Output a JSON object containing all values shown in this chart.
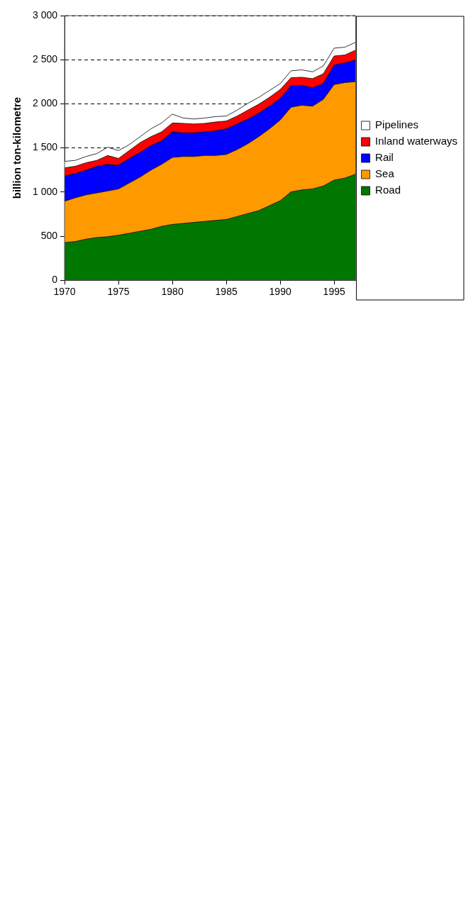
{
  "chart_data": {
    "type": "area",
    "stacked": true,
    "ylabel": "billion ton-kilometre",
    "x": [
      1970,
      1971,
      1972,
      1973,
      1974,
      1975,
      1976,
      1977,
      1978,
      1979,
      1980,
      1981,
      1982,
      1983,
      1984,
      1985,
      1986,
      1987,
      1988,
      1989,
      1990,
      1991,
      1992,
      1993,
      1994,
      1995,
      1996,
      1997
    ],
    "series": [
      {
        "name": "Road",
        "color": "#007700",
        "values": [
          426,
          439,
          466,
          484,
          493,
          511,
          532,
          555,
          577,
          611,
          633,
          644,
          656,
          667,
          678,
          689,
          722,
          756,
          789,
          845,
          901,
          1001,
          1024,
          1035,
          1068,
          1135,
          1158,
          1203
        ]
      },
      {
        "name": "Sea",
        "color": "#ff9900",
        "values": [
          469,
          496,
          502,
          506,
          519,
          524,
          570,
          614,
          670,
          703,
          759,
          759,
          747,
          747,
          736,
          737,
          759,
          792,
          838,
          871,
          915,
          960,
          960,
          938,
          983,
          1083,
          1082,
          1049
        ]
      },
      {
        "name": "Rail",
        "color": "#0000ff",
        "values": [
          285,
          276,
          279,
          302,
          302,
          268,
          279,
          279,
          279,
          268,
          290,
          268,
          268,
          268,
          280,
          290,
          291,
          280,
          267,
          257,
          246,
          246,
          223,
          212,
          178,
          223,
          224,
          245
        ]
      },
      {
        "name": "Inland waterways",
        "color": "#ff0000",
        "values": [
          94,
          81,
          85,
          67,
          100,
          78,
          89,
          112,
          101,
          100,
          101,
          107,
          100,
          96,
          100,
          89,
          89,
          100,
          101,
          100,
          100,
          89,
          94,
          100,
          112,
          101,
          89,
          112
        ]
      },
      {
        "name": "Pipelines",
        "color": "#ffffff",
        "values": [
          73,
          67,
          71,
          77,
          94,
          89,
          67,
          67,
          89,
          101,
          100,
          61,
          57,
          61,
          61,
          56,
          67,
          78,
          78,
          78,
          67,
          78,
          84,
          78,
          89,
          89,
          89,
          89
        ]
      }
    ],
    "xlim": [
      1970,
      1997
    ],
    "xticks": [
      1970,
      1975,
      1980,
      1985,
      1990,
      1995
    ],
    "ylim": [
      0,
      3000
    ],
    "yticks": [
      {
        "value": 0,
        "label": "0"
      },
      {
        "value": 500,
        "label": "500"
      },
      {
        "value": 1000,
        "label": "1 000"
      },
      {
        "value": 1500,
        "label": "1 500"
      },
      {
        "value": 2000,
        "label": "2 000"
      },
      {
        "value": 2500,
        "label": "2 500"
      },
      {
        "value": 3000,
        "label": "3 000"
      }
    ],
    "grid": "y",
    "legend": "right",
    "marker": "none",
    "line_style": "solid"
  }
}
